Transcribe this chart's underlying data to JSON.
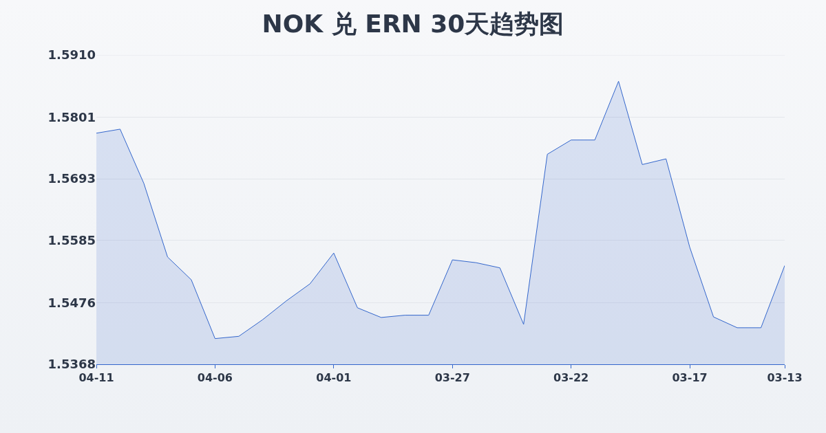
{
  "chart_data": {
    "type": "area",
    "title": "NOK 兑 ERN 30天趋势图",
    "categories": [
      "04-11",
      null,
      null,
      null,
      null,
      "04-06",
      null,
      null,
      null,
      null,
      "04-01",
      null,
      null,
      null,
      null,
      "03-27",
      null,
      null,
      null,
      null,
      "03-22",
      null,
      null,
      null,
      null,
      "03-17",
      null,
      null,
      null,
      "03-13"
    ],
    "series": [
      {
        "color": "#3366cc",
        "values": [
          1.5773,
          1.578,
          1.5685,
          1.5556,
          1.5516,
          1.5413,
          1.5417,
          1.5446,
          1.5479,
          1.5509,
          1.5563,
          1.5467,
          1.545,
          1.5454,
          1.5454,
          1.5551,
          1.5546,
          1.5537,
          1.5438,
          1.5736,
          1.5761,
          1.5761,
          1.5864,
          1.5718,
          1.5728,
          1.5573,
          1.5451,
          1.5432,
          1.5432,
          1.5541
        ]
      }
    ],
    "ylim": [
      1.5368,
      1.591
    ],
    "yticks": [
      1.5368,
      1.5476,
      1.5585,
      1.5693,
      1.5801,
      {
        "value": 1.591,
        "label": "1.5910"
      }
    ],
    "grid": "y",
    "marker": "none",
    "line_style": "solid",
    "legend": false
  }
}
